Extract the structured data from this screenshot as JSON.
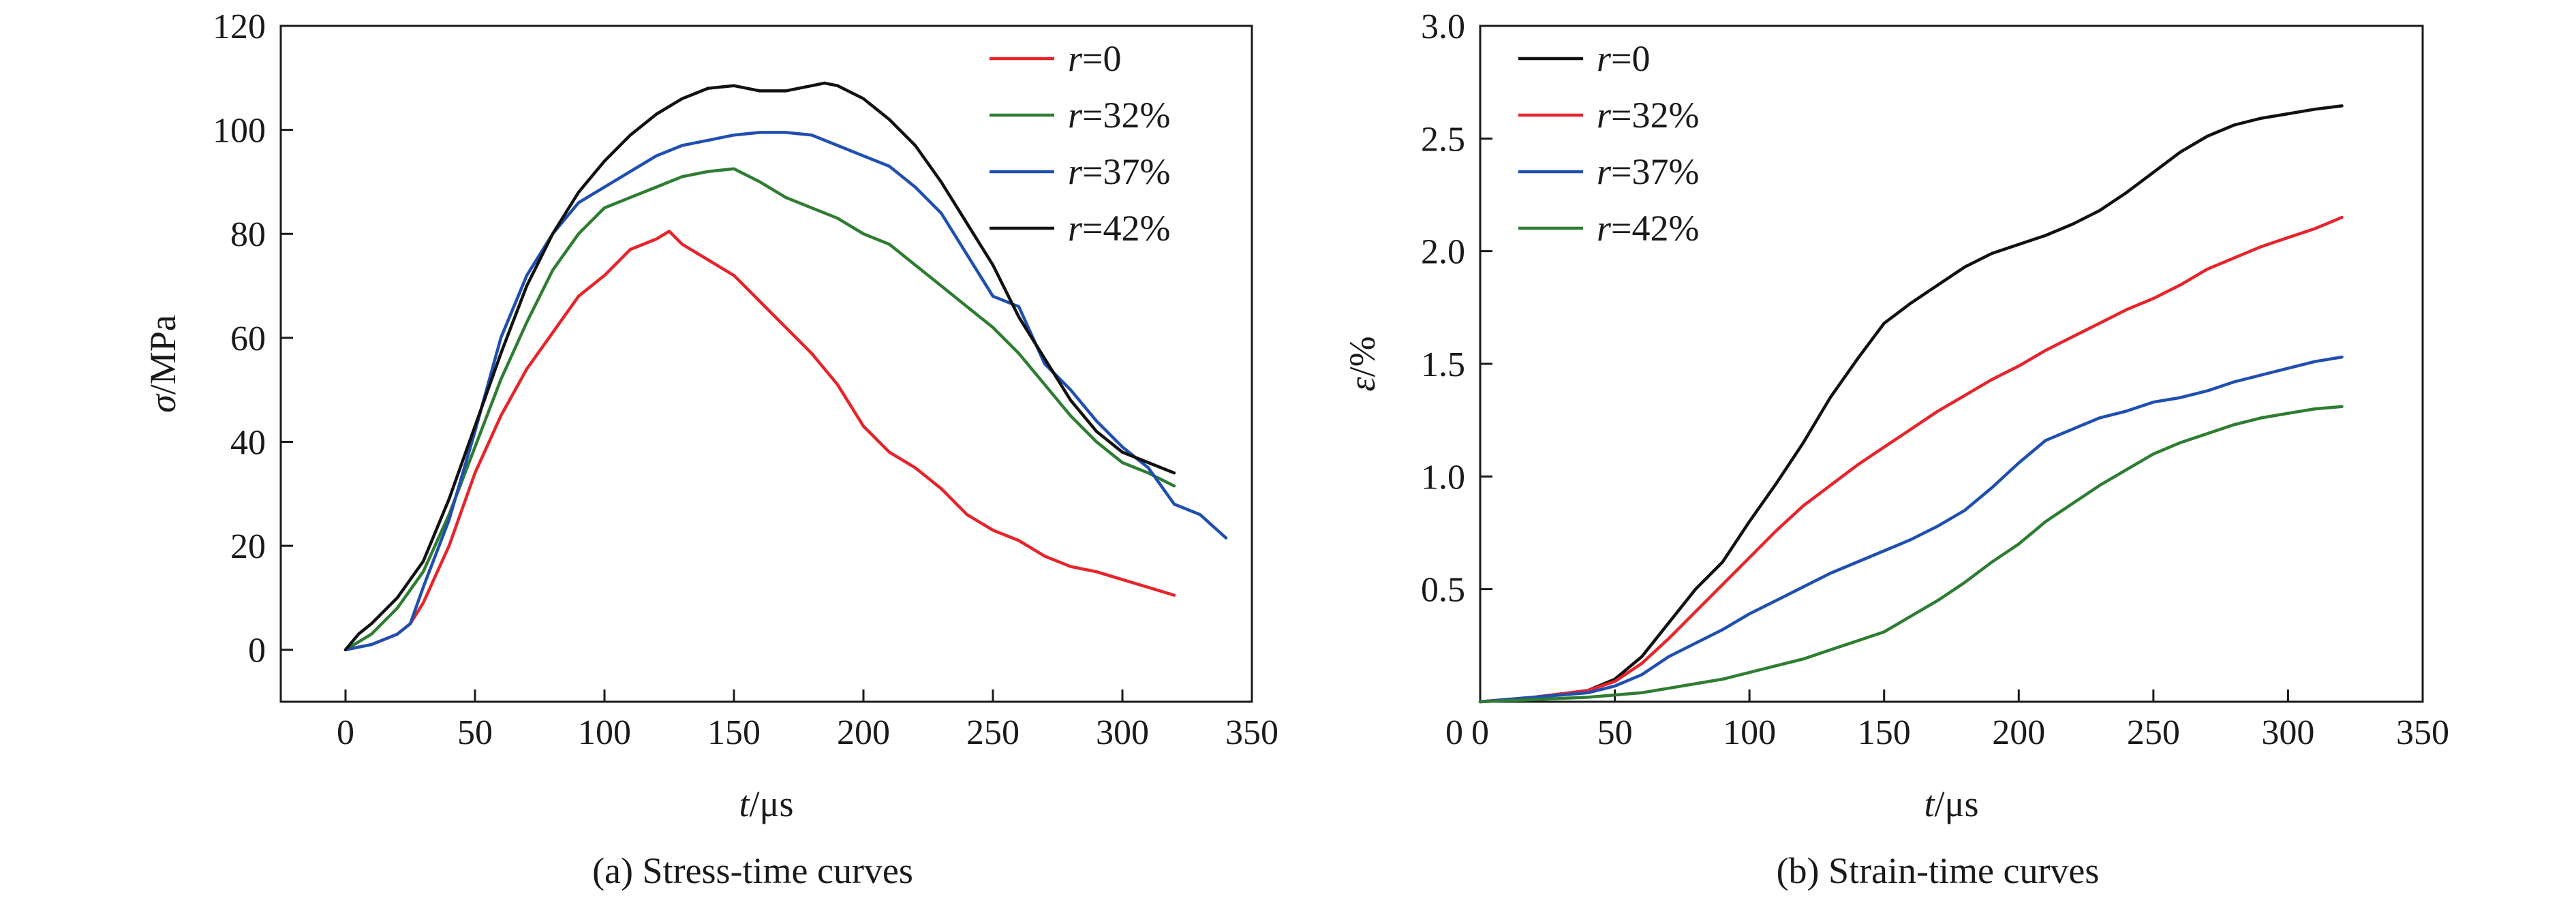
{
  "chart_data": [
    {
      "type": "line",
      "caption": "(a) Stress-time curves",
      "xlabel": "t/μs",
      "ylabel": "σ/MPa",
      "xlim": [
        -25,
        350
      ],
      "ylim": [
        -10,
        120
      ],
      "xticks": [
        0,
        50,
        100,
        150,
        200,
        250,
        300,
        350
      ],
      "yticks": [
        0,
        20,
        40,
        60,
        80,
        100,
        120
      ],
      "legend_position": "top-right",
      "grid": false,
      "series": [
        {
          "name": "r=0",
          "color": "#e8232a",
          "x": [
            0,
            10,
            20,
            25,
            30,
            40,
            50,
            60,
            70,
            80,
            90,
            100,
            110,
            120,
            125,
            130,
            140,
            150,
            160,
            170,
            180,
            190,
            200,
            210,
            220,
            230,
            240,
            250,
            260,
            270,
            280,
            290,
            300,
            310,
            320
          ],
          "y": [
            0,
            1,
            3,
            5,
            9,
            20,
            34,
            45,
            54,
            61,
            68,
            72,
            77,
            79,
            80.5,
            78,
            75,
            72,
            67,
            62,
            57,
            51,
            43,
            38,
            35,
            31,
            26,
            23,
            21,
            18,
            16,
            15,
            13.5,
            12,
            10.5
          ]
        },
        {
          "name": "r=32%",
          "color": "#2e7d32",
          "x": [
            0,
            10,
            20,
            30,
            40,
            50,
            60,
            70,
            80,
            90,
            100,
            110,
            120,
            130,
            140,
            150,
            160,
            170,
            180,
            190,
            200,
            210,
            220,
            230,
            240,
            250,
            260,
            270,
            280,
            290,
            300,
            310,
            320
          ],
          "y": [
            0,
            3,
            8,
            15,
            26,
            39,
            52,
            63,
            73,
            80,
            85,
            87,
            89,
            91,
            92,
            92.5,
            90,
            87,
            85,
            83,
            80,
            78,
            74,
            70,
            66,
            62,
            57,
            51,
            45,
            40,
            36,
            34,
            31.5
          ]
        },
        {
          "name": "r=37%",
          "color": "#1f4fb0",
          "x": [
            0,
            10,
            20,
            25,
            30,
            40,
            50,
            60,
            70,
            80,
            90,
            100,
            110,
            120,
            130,
            140,
            150,
            160,
            170,
            180,
            190,
            200,
            210,
            220,
            230,
            240,
            250,
            260,
            270,
            280,
            290,
            300,
            310,
            320,
            330,
            340
          ],
          "y": [
            0,
            1,
            3,
            5,
            12,
            25,
            42,
            60,
            72,
            80,
            86,
            89,
            92,
            95,
            97,
            98,
            99,
            99.5,
            99.5,
            99,
            97,
            95,
            93,
            89,
            84,
            76,
            68,
            66,
            55,
            50,
            44,
            39,
            35,
            28,
            26,
            21.5
          ]
        },
        {
          "name": "r=42%",
          "color": "#111111",
          "x": [
            0,
            5,
            10,
            20,
            30,
            40,
            50,
            60,
            70,
            80,
            90,
            100,
            110,
            120,
            130,
            140,
            150,
            160,
            170,
            180,
            185,
            190,
            200,
            210,
            220,
            230,
            240,
            250,
            260,
            270,
            280,
            290,
            300,
            310,
            320
          ],
          "y": [
            0,
            3,
            5,
            10,
            17,
            29,
            43,
            57,
            70,
            80,
            88,
            94,
            99,
            103,
            106,
            108,
            108.5,
            107.5,
            107.5,
            108.5,
            109,
            108.5,
            106,
            102,
            97,
            90,
            82,
            74,
            64,
            56,
            48,
            42,
            38,
            36,
            34
          ]
        }
      ]
    },
    {
      "type": "line",
      "caption": "(b) Strain-time curves",
      "xlabel": "t/μs",
      "ylabel": "ε/%",
      "xlim": [
        0,
        350
      ],
      "ylim": [
        0,
        3.0
      ],
      "xticks": [
        0,
        50,
        100,
        150,
        200,
        250,
        300,
        350
      ],
      "yticks": [
        0.5,
        1.0,
        1.5,
        2.0,
        2.5,
        3.0
      ],
      "ytick_labels": [
        "0.5",
        "1.0",
        "1.5",
        "2.0",
        "2.5",
        "3.0"
      ],
      "legend_position": "top-left",
      "grid": false,
      "series": [
        {
          "name": "r=0",
          "color": "#111111",
          "x": [
            0,
            20,
            40,
            50,
            60,
            70,
            80,
            90,
            100,
            110,
            120,
            130,
            140,
            150,
            160,
            170,
            180,
            190,
            200,
            210,
            220,
            230,
            240,
            250,
            260,
            270,
            280,
            290,
            300,
            310,
            320
          ],
          "y": [
            0,
            0.02,
            0.05,
            0.1,
            0.2,
            0.35,
            0.5,
            0.62,
            0.8,
            0.97,
            1.15,
            1.35,
            1.52,
            1.68,
            1.77,
            1.85,
            1.93,
            1.99,
            2.03,
            2.07,
            2.12,
            2.18,
            2.26,
            2.35,
            2.44,
            2.51,
            2.56,
            2.59,
            2.61,
            2.63,
            2.645
          ]
        },
        {
          "name": "r=32%",
          "color": "#e8232a",
          "x": [
            0,
            20,
            40,
            50,
            60,
            70,
            80,
            90,
            100,
            110,
            120,
            130,
            140,
            150,
            160,
            170,
            180,
            190,
            200,
            210,
            220,
            230,
            240,
            250,
            260,
            270,
            280,
            290,
            300,
            310,
            320
          ],
          "y": [
            0,
            0.02,
            0.05,
            0.09,
            0.17,
            0.28,
            0.4,
            0.52,
            0.64,
            0.76,
            0.87,
            0.96,
            1.05,
            1.13,
            1.21,
            1.29,
            1.36,
            1.43,
            1.49,
            1.56,
            1.62,
            1.68,
            1.74,
            1.79,
            1.85,
            1.92,
            1.97,
            2.02,
            2.06,
            2.1,
            2.15
          ]
        },
        {
          "name": "r=37%",
          "color": "#1f4fb0",
          "x": [
            0,
            20,
            40,
            50,
            60,
            70,
            80,
            90,
            100,
            110,
            120,
            130,
            140,
            150,
            160,
            170,
            180,
            190,
            200,
            210,
            220,
            230,
            240,
            250,
            260,
            270,
            280,
            290,
            300,
            310,
            320
          ],
          "y": [
            0,
            0.02,
            0.04,
            0.07,
            0.12,
            0.2,
            0.26,
            0.32,
            0.39,
            0.45,
            0.51,
            0.57,
            0.62,
            0.67,
            0.72,
            0.78,
            0.85,
            0.95,
            1.06,
            1.16,
            1.21,
            1.26,
            1.29,
            1.33,
            1.35,
            1.38,
            1.42,
            1.45,
            1.48,
            1.51,
            1.53
          ]
        },
        {
          "name": "r=42%",
          "color": "#2e7d32",
          "x": [
            0,
            20,
            40,
            50,
            60,
            70,
            80,
            90,
            100,
            110,
            120,
            130,
            140,
            150,
            160,
            170,
            180,
            190,
            200,
            210,
            220,
            230,
            240,
            250,
            260,
            270,
            280,
            290,
            300,
            310,
            320
          ],
          "y": [
            0,
            0.01,
            0.02,
            0.03,
            0.04,
            0.06,
            0.08,
            0.1,
            0.13,
            0.16,
            0.19,
            0.23,
            0.27,
            0.31,
            0.38,
            0.45,
            0.53,
            0.62,
            0.7,
            0.8,
            0.88,
            0.96,
            1.03,
            1.1,
            1.15,
            1.19,
            1.23,
            1.26,
            1.28,
            1.3,
            1.31
          ]
        }
      ]
    }
  ]
}
